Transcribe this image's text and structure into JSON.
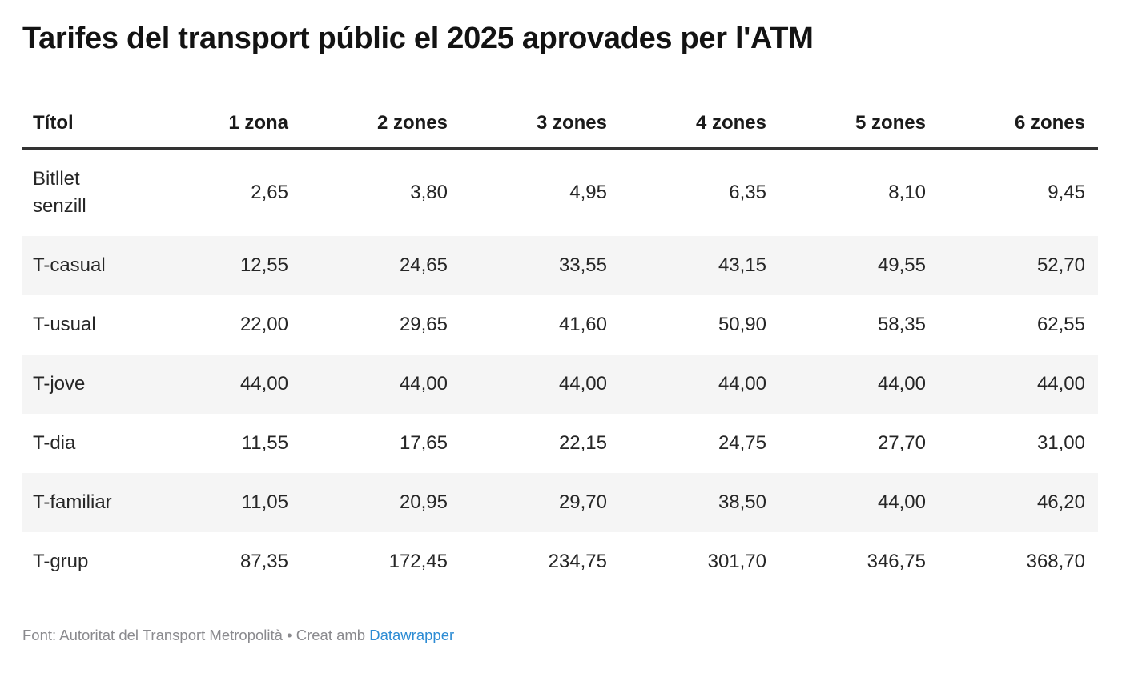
{
  "title": "Tarifes del transport públic el 2025 aprovades per l'ATM",
  "table": {
    "columns": [
      "Títol",
      "1 zona",
      "2 zones",
      "3 zones",
      "4 zones",
      "5 zones",
      "6 zones"
    ],
    "rows": [
      {
        "label": "Bitllet senzill",
        "values": [
          "2,65",
          "3,80",
          "4,95",
          "6,35",
          "8,10",
          "9,45"
        ]
      },
      {
        "label": "T-casual",
        "values": [
          "12,55",
          "24,65",
          "33,55",
          "43,15",
          "49,55",
          "52,70"
        ]
      },
      {
        "label": "T-usual",
        "values": [
          "22,00",
          "29,65",
          "41,60",
          "50,90",
          "58,35",
          "62,55"
        ]
      },
      {
        "label": "T-jove",
        "values": [
          "44,00",
          "44,00",
          "44,00",
          "44,00",
          "44,00",
          "44,00"
        ]
      },
      {
        "label": "T-dia",
        "values": [
          "11,55",
          "17,65",
          "22,15",
          "24,75",
          "27,70",
          "31,00"
        ]
      },
      {
        "label": "T-familiar",
        "values": [
          "11,05",
          "20,95",
          "29,70",
          "38,50",
          "44,00",
          "46,20"
        ]
      },
      {
        "label": "T-grup",
        "values": [
          "87,35",
          "172,45",
          "234,75",
          "301,70",
          "346,75",
          "368,70"
        ]
      }
    ]
  },
  "footer": {
    "source_text": "Font: Autoritat del Transport Metropolità",
    "separator": "•",
    "credit_text": "Creat amb",
    "link_label": "Datawrapper"
  },
  "colors": {
    "link_blue": "#2d8cd4",
    "stripe_gray": "#f5f5f5",
    "header_rule": "#333333",
    "title_text": "#131313",
    "body_text": "#262626",
    "muted_text": "#8a8a8e"
  },
  "chart_data": {
    "type": "table",
    "title": "Tarifes del transport públic el 2025 aprovades per l'ATM",
    "columns": [
      "Títol",
      "1 zona",
      "2 zones",
      "3 zones",
      "4 zones",
      "5 zones",
      "6 zones"
    ],
    "rows": [
      [
        "Bitllet senzill",
        2.65,
        3.8,
        4.95,
        6.35,
        8.1,
        9.45
      ],
      [
        "T-casual",
        12.55,
        24.65,
        33.55,
        43.15,
        49.55,
        52.7
      ],
      [
        "T-usual",
        22.0,
        29.65,
        41.6,
        50.9,
        58.35,
        62.55
      ],
      [
        "T-jove",
        44.0,
        44.0,
        44.0,
        44.0,
        44.0,
        44.0
      ],
      [
        "T-dia",
        11.55,
        17.65,
        22.15,
        24.75,
        27.7,
        31.0
      ],
      [
        "T-familiar",
        11.05,
        20.95,
        29.7,
        38.5,
        44.0,
        46.2
      ],
      [
        "T-grup",
        87.35,
        172.45,
        234.75,
        301.7,
        346.75,
        368.7
      ]
    ],
    "notes": "Decimal comma formatting; striped rows; source: Autoritat del Transport Metropolità; created with Datawrapper"
  }
}
